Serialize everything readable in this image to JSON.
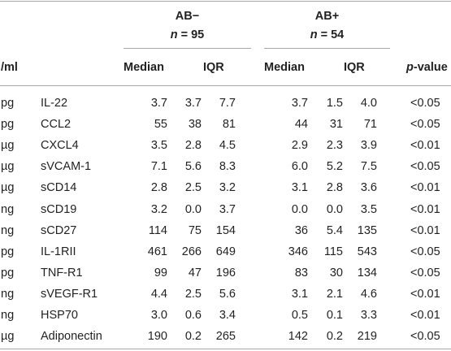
{
  "header": {
    "group1_name": "AB−",
    "group1_n_prefix": "n",
    "group1_n_suffix": " = 95",
    "group2_name": "AB+",
    "group2_n_prefix": "n",
    "group2_n_suffix": " = 54",
    "unit_col": "/ml",
    "median1": "Median",
    "iqr1": "IQR",
    "median2": "Median",
    "iqr2": "IQR",
    "pvalue_prefix": "p",
    "pvalue_suffix": "-value"
  },
  "rows": [
    {
      "unit": "pg",
      "name": "IL-22",
      "m1": "3.7",
      "iqrlo1": "3.7",
      "iqrhi1": "7.7",
      "m2": "3.7",
      "iqrlo2": "1.5",
      "iqrhi2": "4.0",
      "p": "<0.05"
    },
    {
      "unit": "pg",
      "name": "CCL2",
      "m1": "55",
      "iqrlo1": "38",
      "iqrhi1": "81",
      "m2": "44",
      "iqrlo2": "31",
      "iqrhi2": "71",
      "p": "<0.05"
    },
    {
      "unit": "µg",
      "name": "CXCL4",
      "m1": "3.5",
      "iqrlo1": "2.8",
      "iqrhi1": "4.5",
      "m2": "2.9",
      "iqrlo2": "2.3",
      "iqrhi2": "3.9",
      "p": "<0.01"
    },
    {
      "unit": "µg",
      "name": "sVCAM-1",
      "m1": "7.1",
      "iqrlo1": "5.6",
      "iqrhi1": "8.3",
      "m2": "6.0",
      "iqrlo2": "5.2",
      "iqrhi2": "7.5",
      "p": "<0.05"
    },
    {
      "unit": "µg",
      "name": "sCD14",
      "m1": "2.8",
      "iqrlo1": "2.5",
      "iqrhi1": "3.2",
      "m2": "3.1",
      "iqrlo2": "2.8",
      "iqrhi2": "3.6",
      "p": "<0.01"
    },
    {
      "unit": "ng",
      "name": "sCD19",
      "m1": "3.2",
      "iqrlo1": "0.0",
      "iqrhi1": "3.7",
      "m2": "0.0",
      "iqrlo2": "0.0",
      "iqrhi2": "3.5",
      "p": "<0.01"
    },
    {
      "unit": "ng",
      "name": "sCD27",
      "m1": "114",
      "iqrlo1": "75",
      "iqrhi1": "154",
      "m2": "36",
      "iqrlo2": "5.4",
      "iqrhi2": "135",
      "p": "<0.01"
    },
    {
      "unit": "pg",
      "name": "IL-1RII",
      "m1": "461",
      "iqrlo1": "266",
      "iqrhi1": "649",
      "m2": "346",
      "iqrlo2": "115",
      "iqrhi2": "543",
      "p": "<0.05"
    },
    {
      "unit": "pg",
      "name": "TNF-R1",
      "m1": "99",
      "iqrlo1": "47",
      "iqrhi1": "196",
      "m2": "83",
      "iqrlo2": "30",
      "iqrhi2": "134",
      "p": "<0.05"
    },
    {
      "unit": "ng",
      "name": "sVEGF-R1",
      "m1": "4.4",
      "iqrlo1": "2.5",
      "iqrhi1": "5.6",
      "m2": "3.1",
      "iqrlo2": "2.1",
      "iqrhi2": "4.6",
      "p": "<0.01"
    },
    {
      "unit": "ng",
      "name": "HSP70",
      "m1": "3.0",
      "iqrlo1": "0.6",
      "iqrhi1": "3.4",
      "m2": "0.5",
      "iqrlo2": "0.1",
      "iqrhi2": "3.3",
      "p": "<0.01"
    },
    {
      "unit": "µg",
      "name": "Adiponectin",
      "m1": "190",
      "iqrlo1": "0.2",
      "iqrhi1": "265",
      "m2": "142",
      "iqrlo2": "0.2",
      "iqrhi2": "219",
      "p": "<0.05"
    }
  ]
}
